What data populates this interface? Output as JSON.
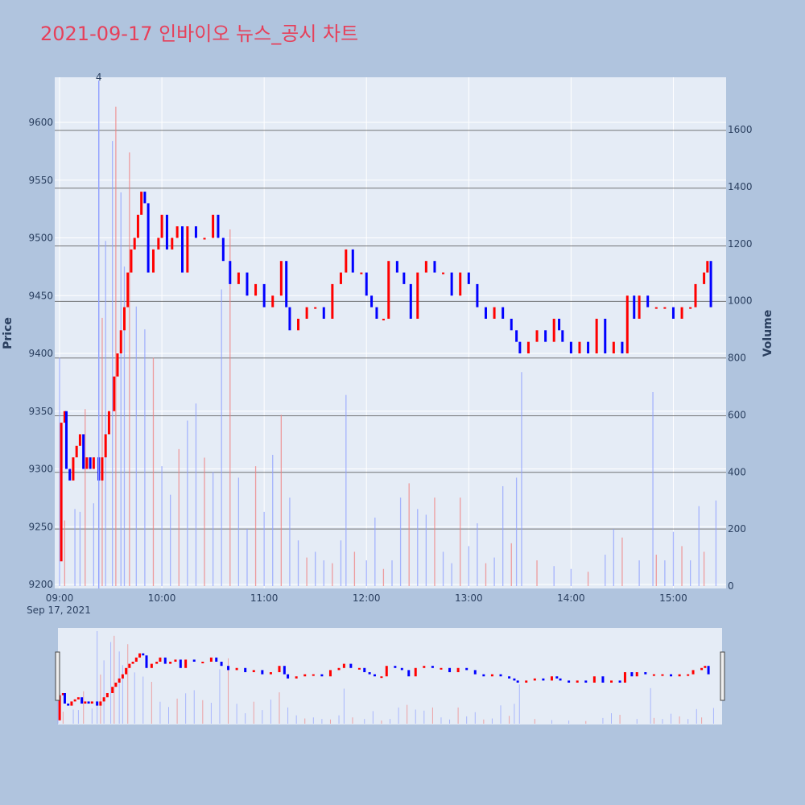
{
  "title": "2021-09-17 인바이오 뉴스_공시 차트",
  "chart_data": {
    "type": "candlestick",
    "title": "2021-09-17 인바이오 뉴스_공시 차트",
    "date_label": "Sep 17, 2021",
    "x_ticks": [
      "09:00",
      "10:00",
      "11:00",
      "12:00",
      "13:00",
      "14:00",
      "15:00"
    ],
    "x_range": [
      "09:00",
      "15:30"
    ],
    "y_label": "Price",
    "y_range": [
      9200,
      9640
    ],
    "y_ticks": [
      9200,
      9250,
      9300,
      9350,
      9400,
      9450,
      9500,
      9550,
      9600
    ],
    "y2_label": "Volume",
    "y2_range": [
      0,
      1770
    ],
    "y2_ticks": [
      0,
      200,
      400,
      600,
      800,
      1000,
      1200,
      1400,
      1600
    ],
    "annotation": "4",
    "annotation_time": "09:23",
    "up_color": "#ff0000",
    "down_color": "#0000ff",
    "horizontal_lines": [
      9593,
      9543,
      9493,
      9445,
      9396,
      9346,
      9297,
      9248
    ],
    "price_path": [
      [
        "09:00",
        9220
      ],
      [
        "09:01",
        9340
      ],
      [
        "09:03",
        9350
      ],
      [
        "09:04",
        9300
      ],
      [
        "09:06",
        9290
      ],
      [
        "09:08",
        9310
      ],
      [
        "09:10",
        9320
      ],
      [
        "09:12",
        9330
      ],
      [
        "09:14",
        9300
      ],
      [
        "09:16",
        9310
      ],
      [
        "09:18",
        9300
      ],
      [
        "09:20",
        9310
      ],
      [
        "09:23",
        9290
      ],
      [
        "09:25",
        9310
      ],
      [
        "09:27",
        9330
      ],
      [
        "09:29",
        9350
      ],
      [
        "09:32",
        9380
      ],
      [
        "09:34",
        9400
      ],
      [
        "09:36",
        9420
      ],
      [
        "09:38",
        9440
      ],
      [
        "09:40",
        9470
      ],
      [
        "09:42",
        9490
      ],
      [
        "09:44",
        9500
      ],
      [
        "09:46",
        9520
      ],
      [
        "09:48",
        9540
      ],
      [
        "09:50",
        9530
      ],
      [
        "09:52",
        9470
      ],
      [
        "09:55",
        9490
      ],
      [
        "09:58",
        9500
      ],
      [
        "10:00",
        9520
      ],
      [
        "10:03",
        9490
      ],
      [
        "10:06",
        9500
      ],
      [
        "10:09",
        9510
      ],
      [
        "10:12",
        9470
      ],
      [
        "10:15",
        9510
      ],
      [
        "10:20",
        9500
      ],
      [
        "10:25",
        9500
      ],
      [
        "10:30",
        9520
      ],
      [
        "10:33",
        9500
      ],
      [
        "10:36",
        9480
      ],
      [
        "10:40",
        9460
      ],
      [
        "10:45",
        9470
      ],
      [
        "10:50",
        9450
      ],
      [
        "10:55",
        9460
      ],
      [
        "11:00",
        9440
      ],
      [
        "11:05",
        9450
      ],
      [
        "11:10",
        9480
      ],
      [
        "11:13",
        9440
      ],
      [
        "11:15",
        9420
      ],
      [
        "11:20",
        9430
      ],
      [
        "11:25",
        9440
      ],
      [
        "11:30",
        9440
      ],
      [
        "11:35",
        9430
      ],
      [
        "11:40",
        9460
      ],
      [
        "11:45",
        9470
      ],
      [
        "11:48",
        9490
      ],
      [
        "11:52",
        9470
      ],
      [
        "11:57",
        9470
      ],
      [
        "12:00",
        9450
      ],
      [
        "12:03",
        9440
      ],
      [
        "12:06",
        9430
      ],
      [
        "12:10",
        9430
      ],
      [
        "12:13",
        9480
      ],
      [
        "12:18",
        9470
      ],
      [
        "12:22",
        9460
      ],
      [
        "12:26",
        9430
      ],
      [
        "12:30",
        9470
      ],
      [
        "12:35",
        9480
      ],
      [
        "12:40",
        9470
      ],
      [
        "12:45",
        9470
      ],
      [
        "12:50",
        9450
      ],
      [
        "12:55",
        9470
      ],
      [
        "13:00",
        9460
      ],
      [
        "13:05",
        9440
      ],
      [
        "13:10",
        9430
      ],
      [
        "13:15",
        9440
      ],
      [
        "13:20",
        9430
      ],
      [
        "13:25",
        9420
      ],
      [
        "13:28",
        9410
      ],
      [
        "13:30",
        9400
      ],
      [
        "13:35",
        9410
      ],
      [
        "13:40",
        9420
      ],
      [
        "13:45",
        9410
      ],
      [
        "13:50",
        9430
      ],
      [
        "13:53",
        9420
      ],
      [
        "13:55",
        9410
      ],
      [
        "14:00",
        9400
      ],
      [
        "14:05",
        9410
      ],
      [
        "14:10",
        9400
      ],
      [
        "14:15",
        9430
      ],
      [
        "14:20",
        9400
      ],
      [
        "14:25",
        9410
      ],
      [
        "14:30",
        9400
      ],
      [
        "14:33",
        9450
      ],
      [
        "14:37",
        9430
      ],
      [
        "14:40",
        9450
      ],
      [
        "14:45",
        9440
      ],
      [
        "14:50",
        9440
      ],
      [
        "14:55",
        9440
      ],
      [
        "15:00",
        9430
      ],
      [
        "15:05",
        9440
      ],
      [
        "15:10",
        9440
      ],
      [
        "15:13",
        9460
      ],
      [
        "15:18",
        9470
      ],
      [
        "15:20",
        9480
      ],
      [
        "15:22",
        9440
      ]
    ],
    "volume_spikes": [
      [
        "09:00",
        800
      ],
      [
        "09:03",
        230
      ],
      [
        "09:09",
        270
      ],
      [
        "09:12",
        260
      ],
      [
        "09:15",
        620
      ],
      [
        "09:20",
        290
      ],
      [
        "09:23",
        1770
      ],
      [
        "09:25",
        940
      ],
      [
        "09:27",
        1210
      ],
      [
        "09:31",
        1560
      ],
      [
        "09:33",
        1680
      ],
      [
        "09:36",
        1380
      ],
      [
        "09:38",
        1120
      ],
      [
        "09:41",
        1520
      ],
      [
        "09:45",
        980
      ],
      [
        "09:50",
        900
      ],
      [
        "09:55",
        800
      ],
      [
        "10:00",
        420
      ],
      [
        "10:05",
        320
      ],
      [
        "10:10",
        480
      ],
      [
        "10:15",
        580
      ],
      [
        "10:20",
        640
      ],
      [
        "10:25",
        450
      ],
      [
        "10:30",
        400
      ],
      [
        "10:35",
        1040
      ],
      [
        "10:40",
        1250
      ],
      [
        "10:45",
        380
      ],
      [
        "10:50",
        200
      ],
      [
        "10:55",
        420
      ],
      [
        "11:00",
        260
      ],
      [
        "11:05",
        460
      ],
      [
        "11:10",
        600
      ],
      [
        "11:15",
        310
      ],
      [
        "11:20",
        160
      ],
      [
        "11:25",
        100
      ],
      [
        "11:30",
        120
      ],
      [
        "11:35",
        90
      ],
      [
        "11:40",
        80
      ],
      [
        "11:45",
        160
      ],
      [
        "11:48",
        670
      ],
      [
        "11:53",
        120
      ],
      [
        "12:00",
        90
      ],
      [
        "12:05",
        240
      ],
      [
        "12:10",
        60
      ],
      [
        "12:15",
        90
      ],
      [
        "12:20",
        310
      ],
      [
        "12:25",
        360
      ],
      [
        "12:30",
        270
      ],
      [
        "12:35",
        250
      ],
      [
        "12:40",
        310
      ],
      [
        "12:45",
        120
      ],
      [
        "12:50",
        80
      ],
      [
        "12:55",
        310
      ],
      [
        "13:00",
        140
      ],
      [
        "13:05",
        220
      ],
      [
        "13:10",
        80
      ],
      [
        "13:15",
        100
      ],
      [
        "13:20",
        350
      ],
      [
        "13:25",
        150
      ],
      [
        "13:28",
        380
      ],
      [
        "13:31",
        750
      ],
      [
        "13:40",
        90
      ],
      [
        "13:50",
        70
      ],
      [
        "14:00",
        60
      ],
      [
        "14:10",
        50
      ],
      [
        "14:20",
        110
      ],
      [
        "14:25",
        200
      ],
      [
        "14:30",
        170
      ],
      [
        "14:40",
        90
      ],
      [
        "14:48",
        680
      ],
      [
        "14:50",
        110
      ],
      [
        "14:55",
        90
      ],
      [
        "15:00",
        190
      ],
      [
        "15:05",
        140
      ],
      [
        "15:10",
        90
      ],
      [
        "15:15",
        280
      ],
      [
        "15:18",
        120
      ],
      [
        "15:25",
        300
      ]
    ]
  }
}
